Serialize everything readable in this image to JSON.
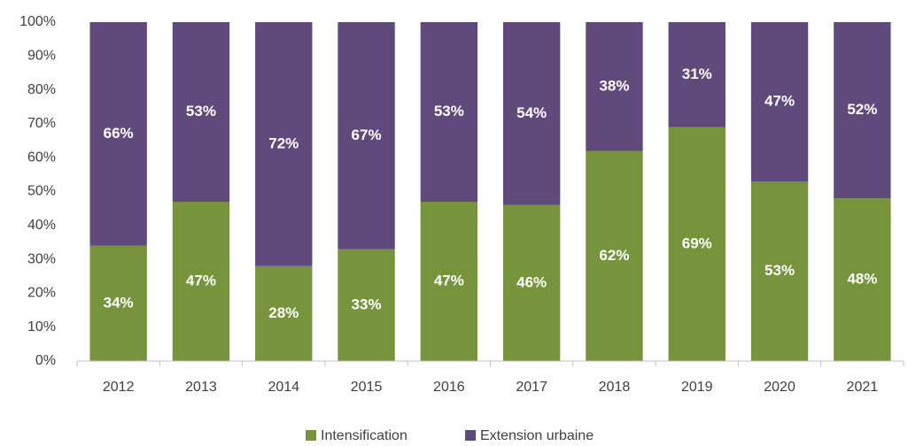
{
  "chart_data": {
    "type": "stacked_bar",
    "categories": [
      "2012",
      "2013",
      "2014",
      "2015",
      "2016",
      "2017",
      "2018",
      "2019",
      "2020",
      "2021"
    ],
    "series": [
      {
        "name": "Intensification",
        "color": "#77933c",
        "values": [
          34,
          47,
          28,
          33,
          47,
          46,
          62,
          69,
          53,
          48
        ],
        "value_labels": [
          "34%",
          "47%",
          "28%",
          "33%",
          "47%",
          "46%",
          "62%",
          "69%",
          "53%",
          "48%"
        ]
      },
      {
        "name": "Extension urbaine",
        "color": "#604a7b",
        "values": [
          66,
          53,
          72,
          67,
          53,
          54,
          38,
          31,
          47,
          52
        ],
        "value_labels": [
          "66%",
          "53%",
          "72%",
          "67%",
          "53%",
          "54%",
          "38%",
          "31%",
          "47%",
          "52%"
        ]
      }
    ],
    "ylim": [
      0,
      100
    ],
    "yticks": [
      {
        "value": 0,
        "label": "0%"
      },
      {
        "value": 10,
        "label": "10%"
      },
      {
        "value": 20,
        "label": "20%"
      },
      {
        "value": 30,
        "label": "30%"
      },
      {
        "value": 40,
        "label": "40%"
      },
      {
        "value": 50,
        "label": "50%"
      },
      {
        "value": 60,
        "label": "60%"
      },
      {
        "value": 70,
        "label": "70%"
      },
      {
        "value": 80,
        "label": "80%"
      },
      {
        "value": 90,
        "label": "90%"
      },
      {
        "value": 100,
        "label": "100%"
      }
    ],
    "grid": false,
    "legend": "bottom"
  }
}
